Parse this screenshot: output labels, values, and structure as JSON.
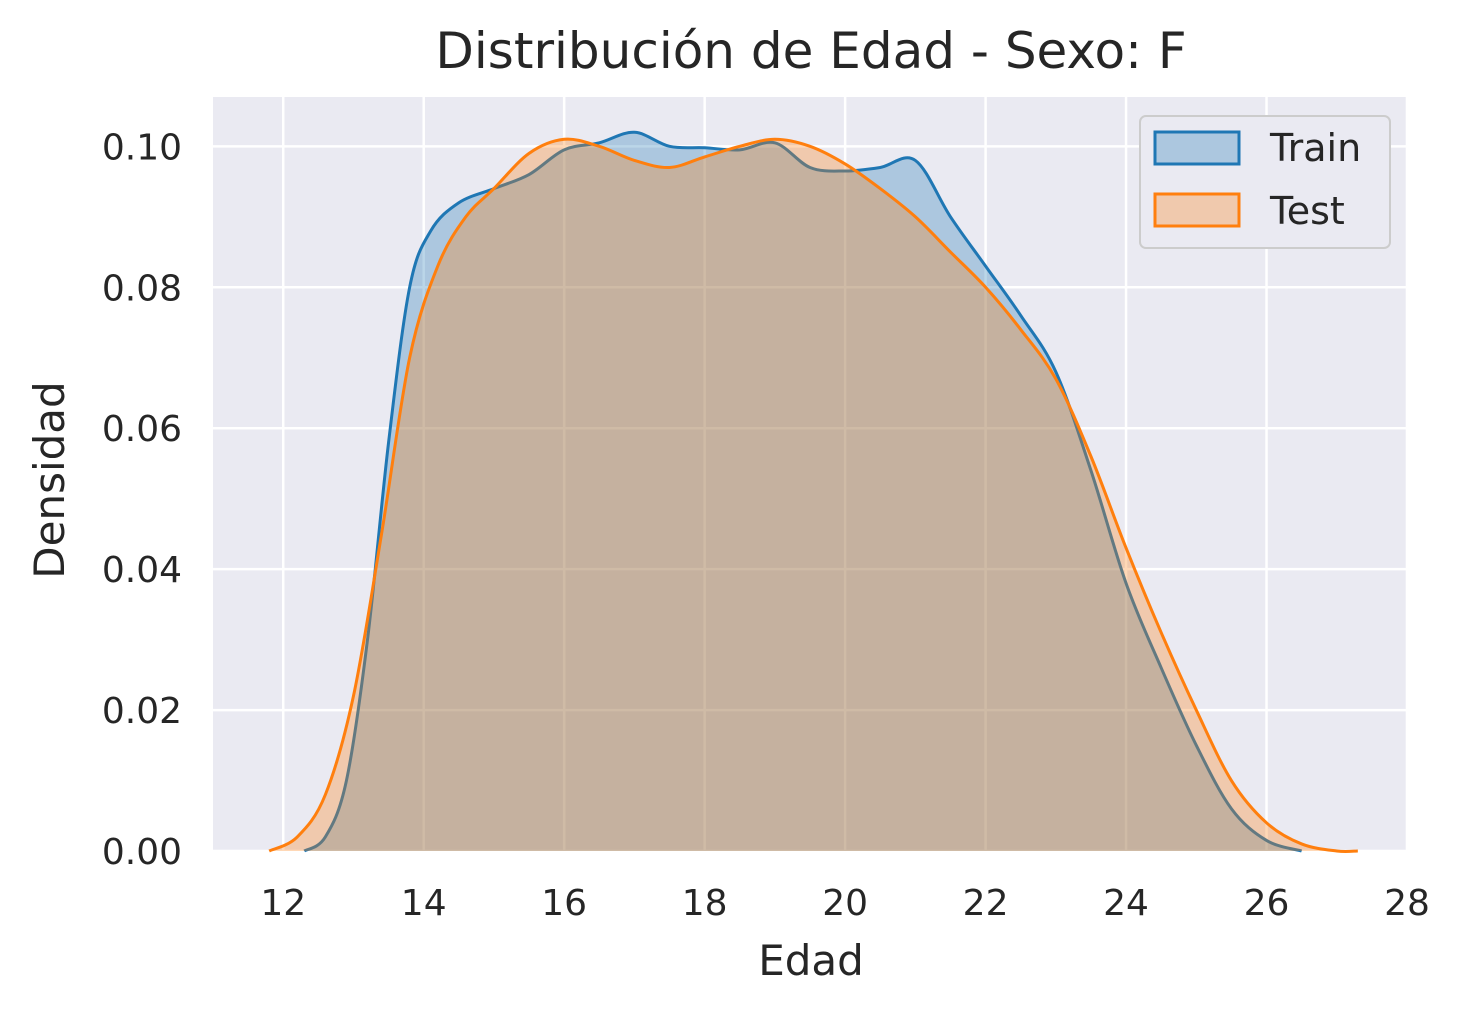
{
  "chart_data": {
    "type": "area",
    "title": "Distribución de Edad - Sexo: F",
    "xlabel": "Edad",
    "ylabel": "Densidad",
    "xlim": [
      11,
      28
    ],
    "ylim": [
      0,
      0.107
    ],
    "xticks": [
      "12",
      "14",
      "16",
      "18",
      "20",
      "22",
      "24",
      "26",
      "28"
    ],
    "yticks": [
      "0.00",
      "0.02",
      "0.04",
      "0.06",
      "0.08",
      "0.10"
    ],
    "grid": true,
    "legend_position": "top-right",
    "series": [
      {
        "name": "Train",
        "color": "#1f77b4",
        "fill_opacity": 0.3,
        "x": [
          12.3,
          12.6,
          12.9,
          13.2,
          13.5,
          13.8,
          14.1,
          14.5,
          15.0,
          15.5,
          16.0,
          16.5,
          17.0,
          17.5,
          18.0,
          18.5,
          19.0,
          19.5,
          20.0,
          20.5,
          21.0,
          21.5,
          22.0,
          22.5,
          23.0,
          23.5,
          24.0,
          24.5,
          25.0,
          25.5,
          26.0,
          26.5
        ],
        "y": [
          0.0,
          0.002,
          0.01,
          0.03,
          0.058,
          0.08,
          0.088,
          0.092,
          0.094,
          0.096,
          0.0995,
          0.1005,
          0.102,
          0.1,
          0.0998,
          0.0995,
          0.1005,
          0.097,
          0.0965,
          0.097,
          0.098,
          0.09,
          0.083,
          0.076,
          0.068,
          0.054,
          0.038,
          0.026,
          0.015,
          0.006,
          0.0015,
          0.0
        ]
      },
      {
        "name": "Test",
        "color": "#ff7f0e",
        "fill_opacity": 0.3,
        "x": [
          11.8,
          12.2,
          12.6,
          13.0,
          13.4,
          13.8,
          14.2,
          14.6,
          15.0,
          15.5,
          16.0,
          16.5,
          17.0,
          17.5,
          18.0,
          18.5,
          19.0,
          19.5,
          20.0,
          20.5,
          21.0,
          21.5,
          22.0,
          22.5,
          23.0,
          23.5,
          24.0,
          24.5,
          25.0,
          25.5,
          26.0,
          26.5,
          27.0,
          27.3
        ],
        "y": [
          0.0,
          0.002,
          0.008,
          0.022,
          0.045,
          0.07,
          0.083,
          0.09,
          0.094,
          0.099,
          0.101,
          0.1,
          0.098,
          0.097,
          0.0985,
          0.1,
          0.101,
          0.1,
          0.0975,
          0.094,
          0.09,
          0.085,
          0.08,
          0.074,
          0.067,
          0.056,
          0.043,
          0.031,
          0.02,
          0.01,
          0.004,
          0.001,
          0.0,
          0.0
        ]
      }
    ]
  }
}
